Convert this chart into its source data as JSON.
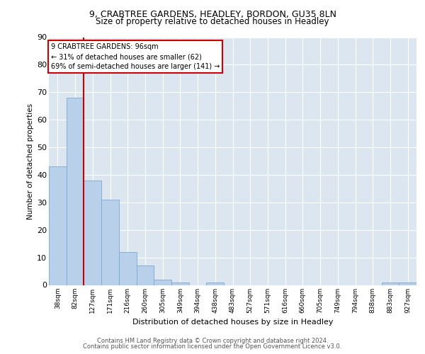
{
  "title1": "9, CRABTREE GARDENS, HEADLEY, BORDON, GU35 8LN",
  "title2": "Size of property relative to detached houses in Headley",
  "xlabel": "Distribution of detached houses by size in Headley",
  "ylabel": "Number of detached properties",
  "bar_labels": [
    "38sqm",
    "82sqm",
    "127sqm",
    "171sqm",
    "216sqm",
    "260sqm",
    "305sqm",
    "349sqm",
    "394sqm",
    "438sqm",
    "483sqm",
    "527sqm",
    "571sqm",
    "616sqm",
    "660sqm",
    "705sqm",
    "749sqm",
    "794sqm",
    "838sqm",
    "883sqm",
    "927sqm"
  ],
  "bar_values": [
    43,
    68,
    38,
    31,
    12,
    7,
    2,
    1,
    0,
    1,
    0,
    0,
    0,
    0,
    0,
    0,
    0,
    0,
    0,
    1,
    1
  ],
  "bar_color": "#b8d0ea",
  "bar_edge_color": "#7aaad0",
  "vline_x_idx": 1,
  "vline_color": "#cc0000",
  "annotation_title": "9 CRABTREE GARDENS: 96sqm",
  "annotation_line1": "← 31% of detached houses are smaller (62)",
  "annotation_line2": "69% of semi-detached houses are larger (141) →",
  "annotation_box_color": "#ffffff",
  "annotation_box_edge": "#cc0000",
  "ylim": [
    0,
    90
  ],
  "yticks": [
    0,
    10,
    20,
    30,
    40,
    50,
    60,
    70,
    80,
    90
  ],
  "plot_bg_color": "#dce6f0",
  "footer1": "Contains HM Land Registry data © Crown copyright and database right 2024.",
  "footer2": "Contains public sector information licensed under the Open Government Licence v3.0."
}
